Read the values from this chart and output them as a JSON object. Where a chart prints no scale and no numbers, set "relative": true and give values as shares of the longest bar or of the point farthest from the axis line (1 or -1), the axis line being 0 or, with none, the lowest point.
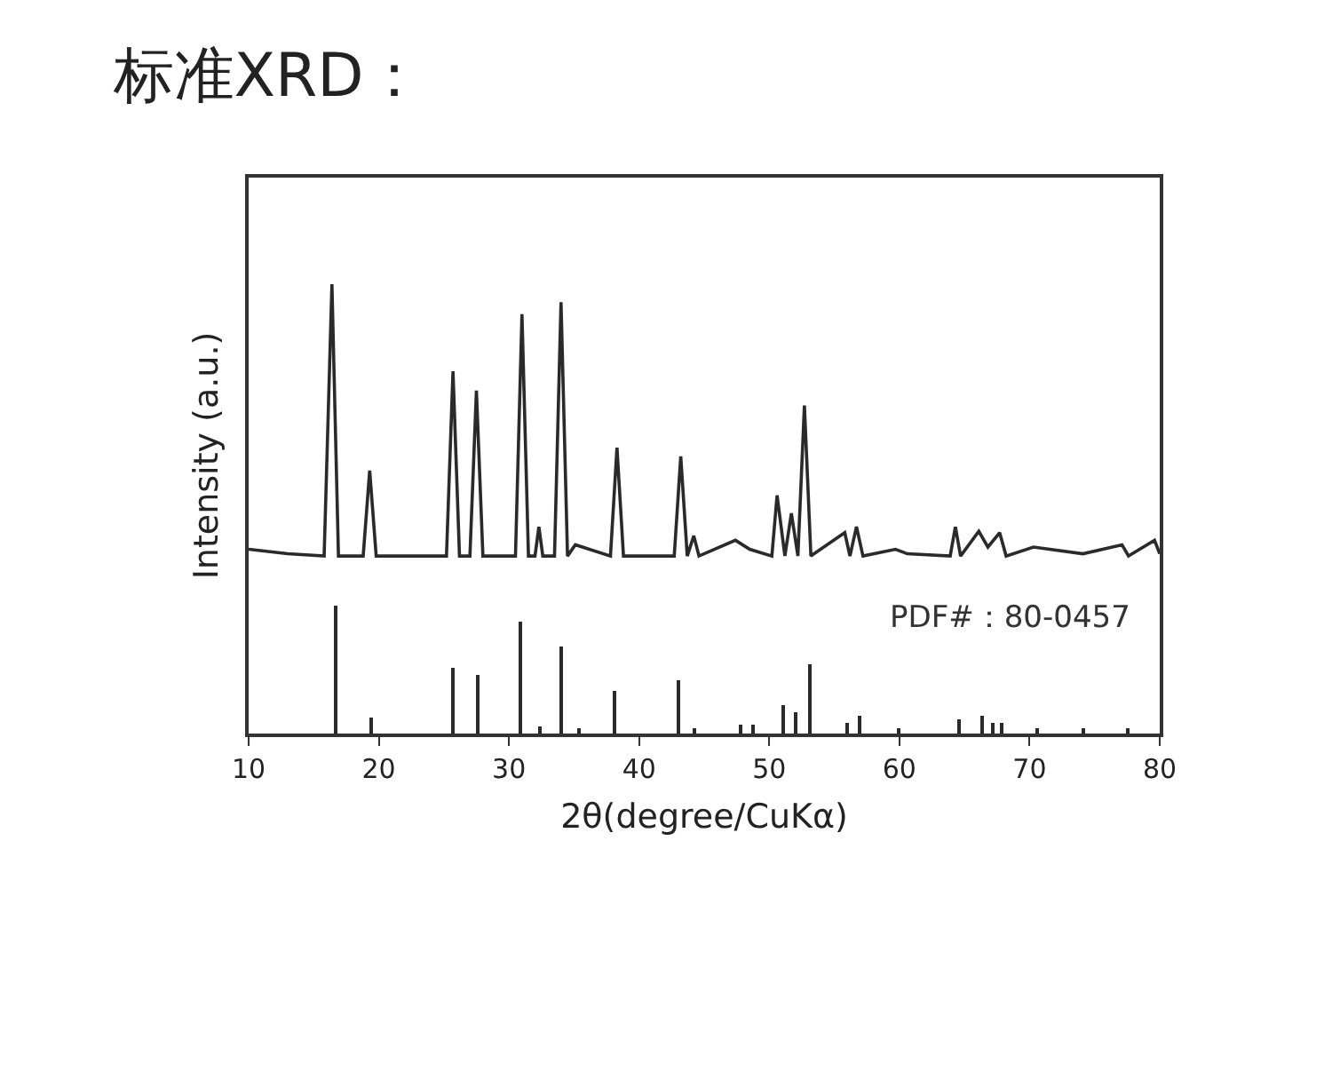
{
  "chart_data": {
    "type": "line",
    "title": "标准XRD：",
    "xlabel": "2θ(degree/CuKα)",
    "ylabel": "Intensity (a.u.)",
    "relative": true,
    "xlim": [
      10,
      80
    ],
    "xticks": [
      10,
      20,
      30,
      40,
      50,
      60,
      70,
      80
    ],
    "annotations": [
      "PDF#：80-0457"
    ],
    "series": [
      {
        "color": "#2a2a2a",
        "x": [
          10,
          13,
          15.8,
          16.4,
          16.9,
          18.8,
          19.3,
          19.8,
          25.2,
          25.7,
          26.2,
          27.0,
          27.5,
          28.0,
          30.5,
          31.0,
          31.5,
          32.0,
          32.3,
          32.6,
          33.5,
          34.0,
          34.5,
          35.1,
          37.8,
          38.3,
          38.8,
          42.7,
          43.2,
          43.7,
          44.2,
          44.6,
          47.4,
          48.5,
          50.2,
          50.6,
          51.2,
          51.7,
          52.2,
          52.7,
          53.2,
          55.8,
          56.2,
          56.7,
          57.2,
          59.7,
          60.6,
          63.9,
          64.3,
          64.7,
          66.1,
          66.8,
          67.7,
          68.2,
          70.3,
          74.1,
          77.1,
          77.6,
          79.6,
          80
        ],
        "values": [
          0.41,
          0.4,
          0.395,
          1.0,
          0.395,
          0.395,
          0.585,
          0.395,
          0.395,
          0.806,
          0.395,
          0.395,
          0.763,
          0.395,
          0.395,
          0.933,
          0.395,
          0.395,
          0.46,
          0.395,
          0.395,
          0.96,
          0.395,
          0.42,
          0.395,
          0.636,
          0.395,
          0.395,
          0.617,
          0.395,
          0.44,
          0.395,
          0.43,
          0.41,
          0.395,
          0.53,
          0.395,
          0.49,
          0.395,
          0.73,
          0.395,
          0.447,
          0.395,
          0.46,
          0.395,
          0.41,
          0.4,
          0.395,
          0.46,
          0.395,
          0.45,
          0.415,
          0.447,
          0.395,
          0.415,
          0.4,
          0.42,
          0.395,
          0.43,
          0.4
        ]
      },
      {
        "type": "bar",
        "color": "#2a2a2a",
        "x": [
          16.7,
          19.4,
          25.7,
          27.6,
          30.9,
          32.4,
          34.0,
          35.4,
          38.1,
          43.0,
          44.2,
          47.8,
          48.7,
          51.1,
          52.0,
          53.1,
          56.0,
          56.9,
          59.9,
          64.6,
          66.4,
          67.2,
          67.9,
          70.6,
          74.1,
          77.5
        ],
        "values": [
          0.285,
          0.036,
          0.146,
          0.13,
          0.25,
          0.016,
          0.194,
          0.01,
          0.095,
          0.119,
          0.01,
          0.02,
          0.02,
          0.063,
          0.047,
          0.154,
          0.024,
          0.04,
          0.01,
          0.03,
          0.04,
          0.025,
          0.025,
          0.01,
          0.01,
          0.012
        ]
      }
    ]
  }
}
